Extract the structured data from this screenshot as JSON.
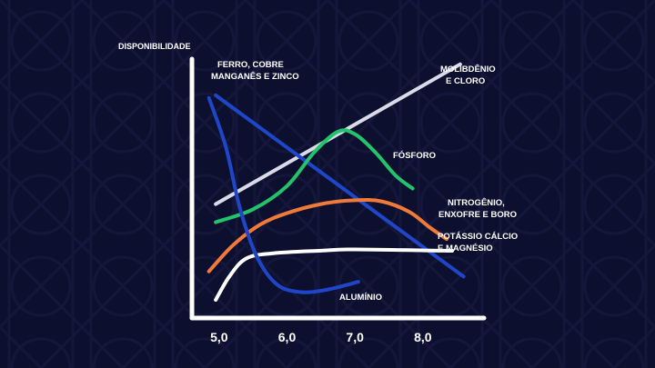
{
  "chart_data": {
    "type": "line",
    "title": "",
    "ylabel": "DISPONIBILIDADE",
    "xlabel": "",
    "x_ticks": [
      "5,0",
      "6,0",
      "7,0",
      "8,0"
    ],
    "xlim": [
      4.6,
      8.9
    ],
    "ylim": [
      0,
      10
    ],
    "grid": false,
    "legend": "none",
    "background_color": "#0d0f2e",
    "axis_color": "#ffffff",
    "series": [
      {
        "name": "MOLIBDÊNIO E CLORO",
        "label_lines": [
          "MOLIBDÊNIO",
          "E CLORO"
        ],
        "color": "#d9dbe8",
        "points": [
          [
            4.95,
            4.4
          ],
          [
            8.55,
            9.8
          ]
        ]
      },
      {
        "name": "FERRO, COBRE MANGANÊS E ZINCO",
        "label_lines": [
          "FERRO, COBRE",
          "MANGANÊS E ZINCO"
        ],
        "color": "#1f46c9",
        "points": [
          [
            4.95,
            8.6
          ],
          [
            8.6,
            1.6
          ]
        ]
      },
      {
        "name": "FÓSFORO",
        "label_lines": [
          "FÓSFORO"
        ],
        "color": "#22c36a",
        "points": [
          [
            4.95,
            3.7
          ],
          [
            5.5,
            4.2
          ],
          [
            6.0,
            5.1
          ],
          [
            6.4,
            6.4
          ],
          [
            6.75,
            7.2
          ],
          [
            7.0,
            7.1
          ],
          [
            7.3,
            6.4
          ],
          [
            7.6,
            5.5
          ],
          [
            7.85,
            5.0
          ]
        ]
      },
      {
        "name": "NITROGÊNIO, ENXOFRE E BORO",
        "label_lines": [
          "NITROGÊNIO,",
          "ENXOFRE E BORO"
        ],
        "color": "#f07a3a",
        "points": [
          [
            4.85,
            1.8
          ],
          [
            5.2,
            2.8
          ],
          [
            5.6,
            3.6
          ],
          [
            6.0,
            4.05
          ],
          [
            6.5,
            4.4
          ],
          [
            7.0,
            4.55
          ],
          [
            7.4,
            4.5
          ],
          [
            7.8,
            4.1
          ],
          [
            8.1,
            3.5
          ],
          [
            8.35,
            3.05
          ]
        ]
      },
      {
        "name": "POTÁSSIO CÁLCIO E MAGNÉSIO",
        "label_lines": [
          "POTÁSSIO CÁLCIO",
          "E MAGNÉSIO"
        ],
        "color": "#ffffff",
        "points": [
          [
            4.95,
            0.7
          ],
          [
            5.15,
            1.6
          ],
          [
            5.4,
            2.3
          ],
          [
            5.8,
            2.5
          ],
          [
            6.5,
            2.6
          ],
          [
            7.0,
            2.65
          ],
          [
            8.3,
            2.6
          ],
          [
            8.4,
            2.6
          ]
        ]
      },
      {
        "name": "ALUMÍNIO",
        "label_lines": [
          "ALUMÍNIO"
        ],
        "color": "#1f46c9",
        "points": [
          [
            4.85,
            8.5
          ],
          [
            5.1,
            6.6
          ],
          [
            5.3,
            4.3
          ],
          [
            5.55,
            2.4
          ],
          [
            5.85,
            1.3
          ],
          [
            6.2,
            1.0
          ],
          [
            6.6,
            1.1
          ],
          [
            7.05,
            1.4
          ]
        ]
      }
    ]
  }
}
